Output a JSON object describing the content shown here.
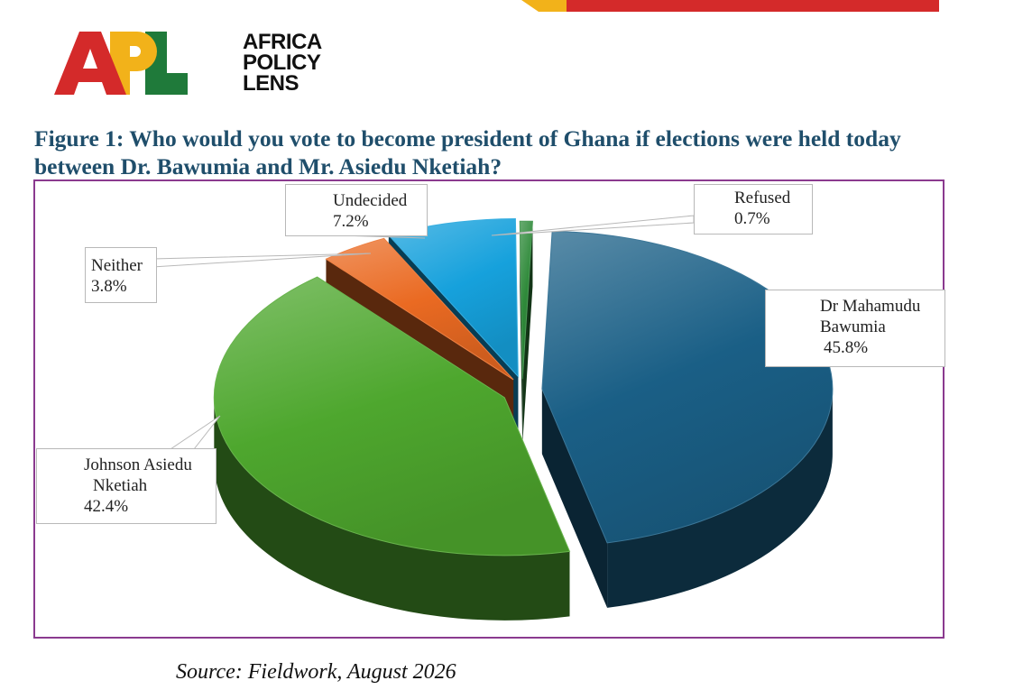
{
  "logo": {
    "mark": [
      "A",
      "P",
      "L"
    ],
    "words": [
      "AFRICA",
      "POLICY",
      "LENS"
    ]
  },
  "figure_title": "Figure 1: Who would you vote to become president of Ghana if elections were held today between Dr. Bawumia and Mr. Asiedu Nketiah?",
  "source": "Source: Fieldwork, August 2026",
  "colors": {
    "top_bar_red": "#d42a2a",
    "top_bar_yellow": "#f2b21a",
    "title": "#1f4e6b",
    "frame": "#8b3a8f"
  },
  "chart_data": {
    "type": "pie",
    "style": "3d-exploded",
    "title": "",
    "slices": [
      {
        "label": "Dr Mahamudu Bawumia",
        "label_lines": [
          "Dr Mahamudu",
          "Bawumia"
        ],
        "value": 45.8,
        "value_label": "45.8%",
        "color": "#1a5f86"
      },
      {
        "label": "Johnson Asiedu Nketiah",
        "label_lines": [
          "Johnson Asiedu",
          "Nketiah"
        ],
        "value": 42.4,
        "value_label": "42.4%",
        "color": "#4ea72e"
      },
      {
        "label": "Neither",
        "label_lines": [
          "Neither"
        ],
        "value": 3.8,
        "value_label": "3.8%",
        "color": "#ea6a22"
      },
      {
        "label": "Undecided",
        "label_lines": [
          "Undecided"
        ],
        "value": 7.2,
        "value_label": "7.2%",
        "color": "#16a1dc"
      },
      {
        "label": "Refused",
        "label_lines": [
          "Refused"
        ],
        "value": 0.7,
        "value_label": "0.7%",
        "color": "#2f8a3a"
      }
    ]
  }
}
